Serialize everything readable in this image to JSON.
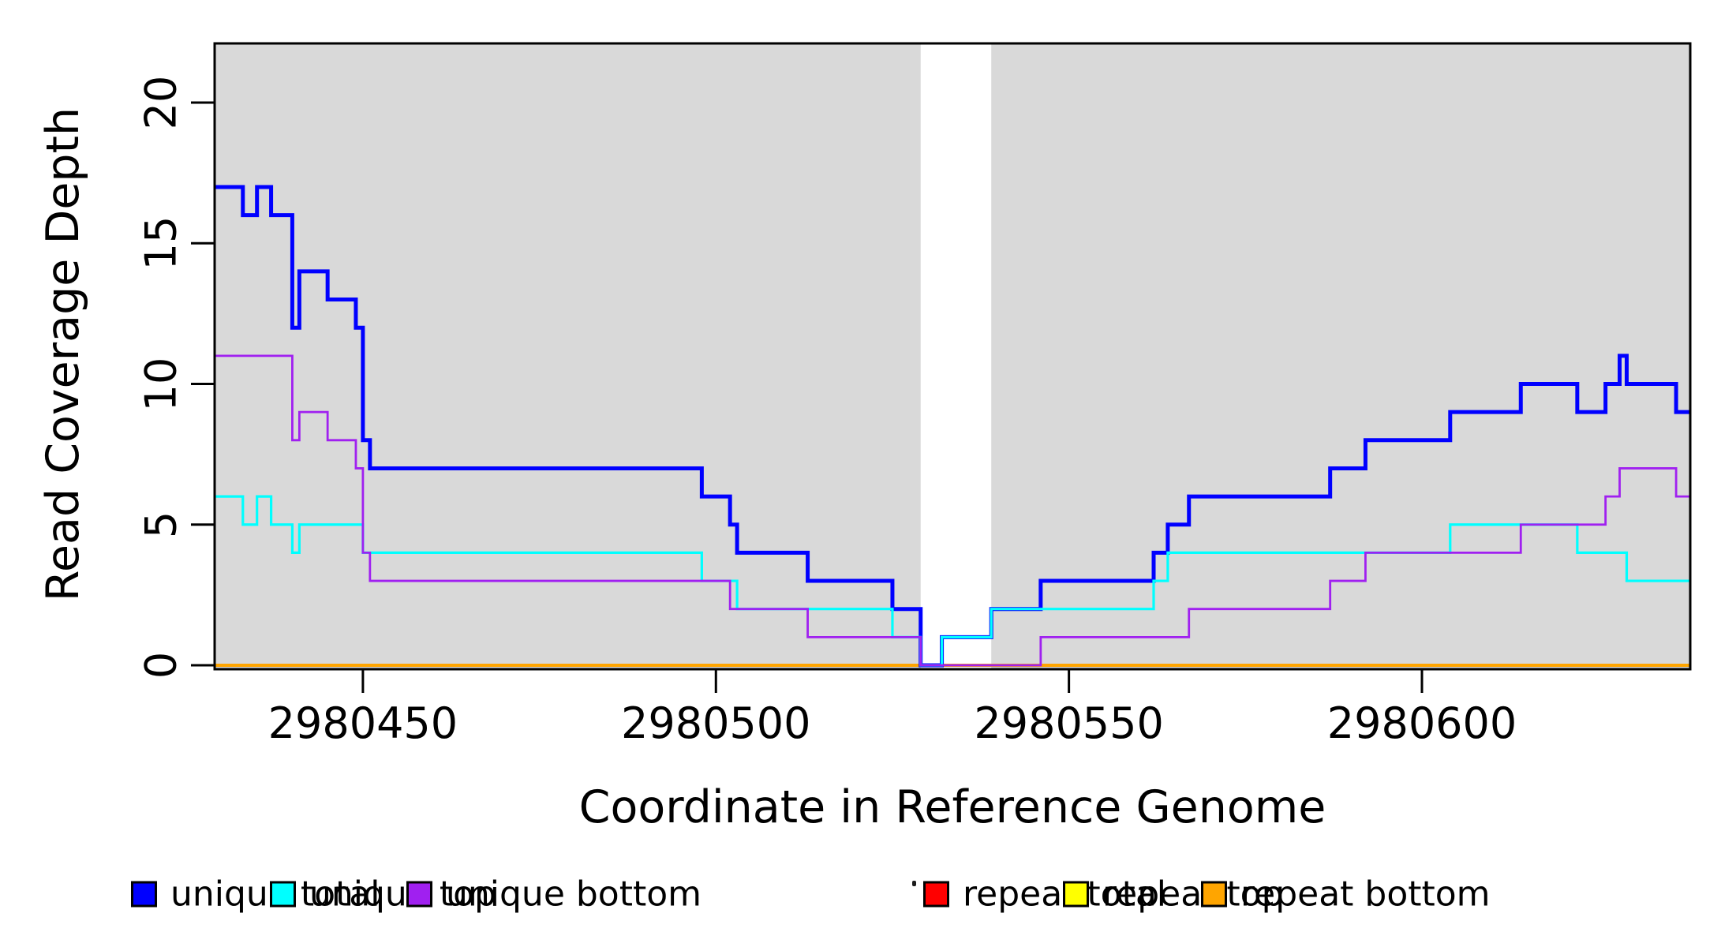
{
  "figure": {
    "background": "#FFFFFF",
    "panel_shading": "#D9D9D9",
    "axis_color": "#000000"
  },
  "chart_data": {
    "type": "line",
    "subtype": "step-coverage",
    "title": "",
    "xlabel": "Coordinate in Reference Genome",
    "ylabel": "Read Coverage Depth",
    "xlim": [
      2980429,
      2980638
    ],
    "ylim": [
      0,
      22.1
    ],
    "grid": false,
    "x_ticks": [
      2980450,
      2980500,
      2980550,
      2980600
    ],
    "x_tick_labels": [
      "2980450",
      "2980500",
      "2980550",
      "2980600"
    ],
    "y_ticks": [
      0,
      5,
      10,
      15,
      20
    ],
    "y_tick_labels": [
      "0",
      "5",
      "10",
      "15",
      "20"
    ],
    "shaded_regions": {
      "color": "#D9D9D9",
      "ranges": [
        [
          2980429,
          2980529
        ],
        [
          2980539,
          2980638
        ]
      ]
    },
    "series": [
      {
        "name": "repeat-total",
        "label": "repeat total",
        "color": "#FF0000",
        "width": 3,
        "points": [
          [
            2980429,
            0
          ]
        ]
      },
      {
        "name": "repeat-top",
        "label": "repeat top",
        "color": "#FFFF00",
        "width": 3,
        "points": [
          [
            2980429,
            0
          ]
        ]
      },
      {
        "name": "repeat-bottom",
        "label": "repeat bottom",
        "color": "#FFA500",
        "width": 4,
        "points": [
          [
            2980429,
            0
          ]
        ]
      },
      {
        "name": "unique-total",
        "label": "unique total",
        "color": "#0000FF",
        "width": 5,
        "points": [
          [
            2980429,
            17
          ],
          [
            2980433,
            16
          ],
          [
            2980435,
            17
          ],
          [
            2980437,
            16
          ],
          [
            2980440,
            12
          ],
          [
            2980441,
            14
          ],
          [
            2980445,
            13
          ],
          [
            2980449,
            12
          ],
          [
            2980450,
            8
          ],
          [
            2980451,
            7
          ],
          [
            2980498,
            6
          ],
          [
            2980502,
            5
          ],
          [
            2980503,
            4
          ],
          [
            2980513,
            3
          ],
          [
            2980525,
            2
          ],
          [
            2980529,
            0
          ],
          [
            2980532,
            1
          ],
          [
            2980539,
            2
          ],
          [
            2980546,
            3
          ],
          [
            2980562,
            4
          ],
          [
            2980564,
            5
          ],
          [
            2980567,
            6
          ],
          [
            2980587,
            7
          ],
          [
            2980592,
            8
          ],
          [
            2980604,
            9
          ],
          [
            2980614,
            10
          ],
          [
            2980622,
            9
          ],
          [
            2980626,
            10
          ],
          [
            2980628,
            11
          ],
          [
            2980629,
            10
          ],
          [
            2980636,
            9
          ]
        ]
      },
      {
        "name": "unique-top",
        "label": "unique top",
        "color": "#00FFFF",
        "width": 3.2,
        "points": [
          [
            2980429,
            6
          ],
          [
            2980433,
            5
          ],
          [
            2980435,
            6
          ],
          [
            2980437,
            5
          ],
          [
            2980440,
            4
          ],
          [
            2980441,
            5
          ],
          [
            2980450,
            4
          ],
          [
            2980498,
            3
          ],
          [
            2980503,
            2
          ],
          [
            2980525,
            1
          ],
          [
            2980529,
            0
          ],
          [
            2980532,
            1
          ],
          [
            2980539,
            2
          ],
          [
            2980562,
            3
          ],
          [
            2980564,
            4
          ],
          [
            2980604,
            5
          ],
          [
            2980622,
            4
          ],
          [
            2980629,
            3
          ]
        ]
      },
      {
        "name": "unique-bottom",
        "label": "unique bottom",
        "color": "#A020F0",
        "width": 2.8,
        "points": [
          [
            2980429,
            11
          ],
          [
            2980440,
            8
          ],
          [
            2980441,
            9
          ],
          [
            2980445,
            8
          ],
          [
            2980449,
            7
          ],
          [
            2980450,
            4
          ],
          [
            2980451,
            3
          ],
          [
            2980502,
            2
          ],
          [
            2980513,
            1
          ],
          [
            2980529,
            0
          ],
          [
            2980546,
            1
          ],
          [
            2980567,
            2
          ],
          [
            2980587,
            3
          ],
          [
            2980592,
            4
          ],
          [
            2980614,
            5
          ],
          [
            2980626,
            6
          ],
          [
            2980628,
            7
          ],
          [
            2980636,
            6
          ]
        ]
      }
    ],
    "legend": {
      "position": "bottom",
      "entries": [
        {
          "label": "unique total",
          "color": "#0000FF"
        },
        {
          "label": "unique top",
          "color": "#00FFFF"
        },
        {
          "label": "unique bottom",
          "color": "#A020F0"
        },
        {
          "label": "repeat total",
          "color": "#FF0000"
        },
        {
          "label": "repeat top",
          "color": "#FFFF00"
        },
        {
          "label": "repeat bottom",
          "color": "#FFA500"
        }
      ]
    }
  }
}
